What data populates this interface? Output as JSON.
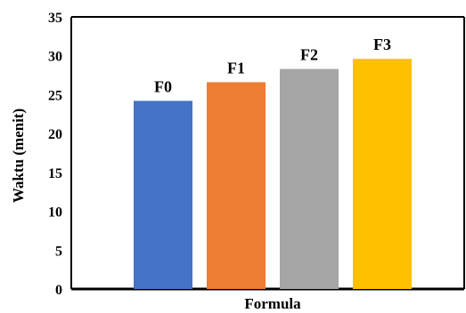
{
  "chart_data": {
    "type": "bar",
    "categories": [
      "F0",
      "F1",
      "F2",
      "F3"
    ],
    "values": [
      24.2,
      26.6,
      28.3,
      29.6
    ],
    "colors": [
      "#4472C4",
      "#ED7D31",
      "#A5A5A5",
      "#FFC000"
    ],
    "title": "",
    "xlabel": "Formula",
    "ylabel": "Waktu (menit)",
    "ylim": [
      0,
      35
    ],
    "yticks": [
      0,
      5,
      10,
      15,
      20,
      25,
      30,
      35
    ],
    "grid": false,
    "legend": "none"
  }
}
